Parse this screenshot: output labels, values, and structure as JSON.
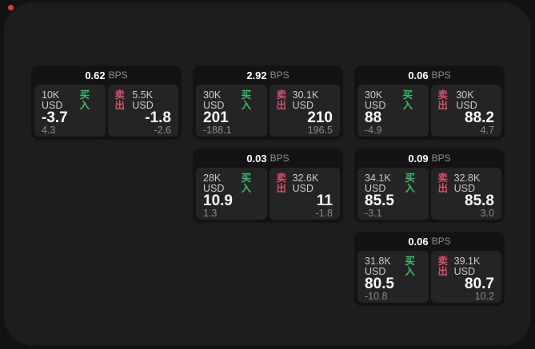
{
  "colors": {
    "background": "#121212",
    "panel": "#1d1d1e",
    "card": "#131314",
    "tile": "#242426",
    "buy_green": "#3db96c",
    "sell_red": "#d84f68",
    "record_dot_red": "#e53935",
    "text_primary": "#fafafa",
    "text_secondary": "#cbcbcb",
    "text_muted": "#8a8a8a"
  },
  "labels": {
    "bps": "BPS",
    "buy": "买入",
    "sell": "卖出"
  },
  "cards": [
    {
      "row": 1,
      "col": 1,
      "bps": "0.62",
      "buy": {
        "size": "10K USD",
        "main": "-3.7",
        "sub": "4.3"
      },
      "sell": {
        "size": "5.5K USD",
        "main": "-1.8",
        "sub": "-2.6"
      }
    },
    {
      "row": 1,
      "col": 2,
      "bps": "2.92",
      "buy": {
        "size": "30K USD",
        "main": "201",
        "sub": "-188.1"
      },
      "sell": {
        "size": "30.1K USD",
        "main": "210",
        "sub": "196.5"
      }
    },
    {
      "row": 1,
      "col": 3,
      "bps": "0.06",
      "buy": {
        "size": "30K USD",
        "main": "88",
        "sub": "-4.9"
      },
      "sell": {
        "size": "30K USD",
        "main": "88.2",
        "sub": "4.7"
      }
    },
    {
      "row": 2,
      "col": 2,
      "bps": "0.03",
      "buy": {
        "size": "28K USD",
        "main": "10.9",
        "sub": "1.3"
      },
      "sell": {
        "size": "32.6K USD",
        "main": "11",
        "sub": "-1.8"
      }
    },
    {
      "row": 2,
      "col": 3,
      "bps": "0.09",
      "buy": {
        "size": "34.1K USD",
        "main": "85.5",
        "sub": "-3.1"
      },
      "sell": {
        "size": "32.8K USD",
        "main": "85.8",
        "sub": "3.0"
      }
    },
    {
      "row": 3,
      "col": 3,
      "bps": "0.06",
      "buy": {
        "size": "31.8K USD",
        "main": "80.5",
        "sub": "-10.8"
      },
      "sell": {
        "size": "39.1K USD",
        "main": "80.7",
        "sub": "10.2"
      }
    }
  ]
}
